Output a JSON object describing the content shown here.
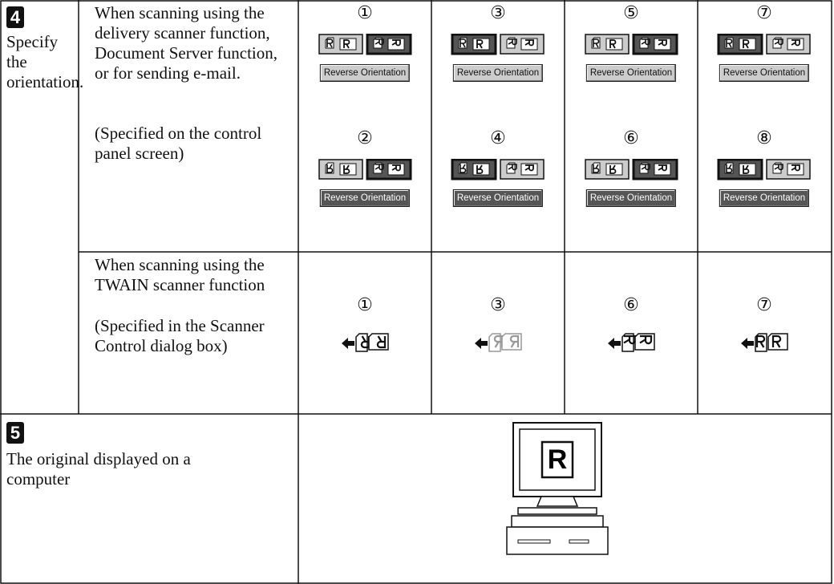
{
  "steps": [
    {
      "number": "4",
      "label": "Specify the orientation.",
      "rows": [
        {
          "description": "When scanning using the delivery scanner function, Document Server function, or for sending e-mail.",
          "note": "(Specified on the control panel screen)",
          "panels": [
            {
              "number": "①",
              "button": "Reverse Orientation"
            },
            {
              "number": "②",
              "button": "Reverse Orientation"
            },
            {
              "number": "③",
              "button": "Reverse Orientation"
            },
            {
              "number": "④",
              "button": "Reverse Orientation"
            },
            {
              "number": "⑤",
              "button": "Reverse Orientation"
            },
            {
              "number": "⑥",
              "button": "Reverse Orientation"
            },
            {
              "number": "⑦",
              "button": "Reverse Orientation"
            },
            {
              "number": "⑧",
              "button": "Reverse Orientation"
            }
          ]
        },
        {
          "description": "When scanning using the TWAIN scanner function",
          "note": "(Specified in the Scanner Control dialog box)",
          "panels": [
            {
              "number": "①"
            },
            {
              "number": "③"
            },
            {
              "number": "⑥"
            },
            {
              "number": "⑦"
            }
          ]
        }
      ]
    },
    {
      "number": "5",
      "label": "The original displayed on a computer",
      "screen_letter": "R"
    }
  ]
}
